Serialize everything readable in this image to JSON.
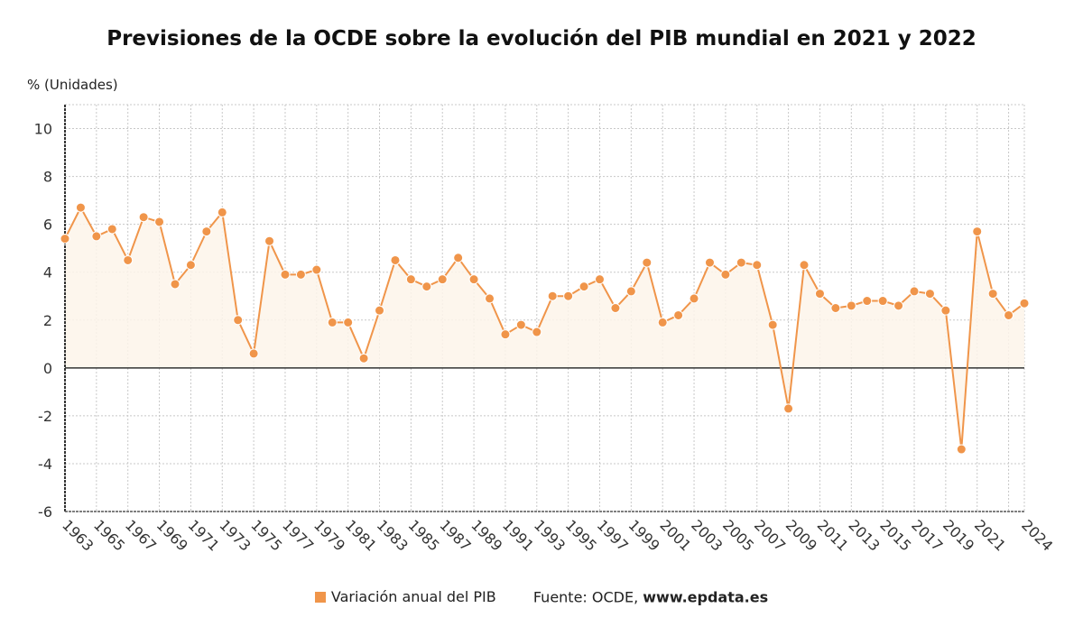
{
  "chart_data": {
    "type": "line",
    "title": "Previsiones de la OCDE sobre la evolución del PIB mundial en 2021 y 2022",
    "ylabel": "% (Unidades)",
    "xlabel": "",
    "ylim": [
      -6,
      11
    ],
    "yticks": [
      -6,
      -4,
      -2,
      0,
      2,
      4,
      6,
      8,
      10
    ],
    "xlim": [
      1963,
      2024
    ],
    "xticks": [
      1963,
      1965,
      1967,
      1969,
      1971,
      1973,
      1975,
      1977,
      1979,
      1981,
      1983,
      1985,
      1987,
      1989,
      1991,
      1993,
      1995,
      1997,
      1999,
      2001,
      2003,
      2005,
      2007,
      2009,
      2011,
      2013,
      2015,
      2017,
      2019,
      2021,
      2024
    ],
    "grid": true,
    "legend_position": "bottom",
    "series": [
      {
        "name": "Variación anual del PIB",
        "color": "#f0954a",
        "x": [
          1963,
          1964,
          1965,
          1966,
          1967,
          1968,
          1969,
          1970,
          1971,
          1972,
          1973,
          1974,
          1975,
          1976,
          1977,
          1978,
          1979,
          1980,
          1981,
          1982,
          1983,
          1984,
          1985,
          1986,
          1987,
          1988,
          1989,
          1990,
          1991,
          1992,
          1993,
          1994,
          1995,
          1996,
          1997,
          1998,
          1999,
          2000,
          2001,
          2002,
          2003,
          2004,
          2005,
          2006,
          2007,
          2008,
          2009,
          2010,
          2011,
          2012,
          2013,
          2014,
          2015,
          2016,
          2017,
          2018,
          2019,
          2020,
          2021,
          2022,
          2023,
          2024
        ],
        "values": [
          5.4,
          6.7,
          5.5,
          5.8,
          4.5,
          6.3,
          6.1,
          3.5,
          4.3,
          5.7,
          6.5,
          2.0,
          0.6,
          5.3,
          3.9,
          3.9,
          4.1,
          1.9,
          1.9,
          0.4,
          2.4,
          4.5,
          3.7,
          3.4,
          3.7,
          4.6,
          3.7,
          2.9,
          1.4,
          1.8,
          1.5,
          3.0,
          3.0,
          3.4,
          3.7,
          2.5,
          3.2,
          4.4,
          1.9,
          2.2,
          2.9,
          4.4,
          3.9,
          4.4,
          4.3,
          1.8,
          -1.7,
          4.3,
          3.1,
          2.5,
          2.6,
          2.8,
          2.8,
          2.6,
          3.2,
          3.1,
          2.4,
          -3.4,
          5.7,
          3.1,
          2.2,
          2.7
        ]
      }
    ]
  },
  "legend": {
    "series_label": "Variación anual del PIB",
    "source_label": "Fuente: OCDE,",
    "source_site": "www.epdata.es"
  }
}
